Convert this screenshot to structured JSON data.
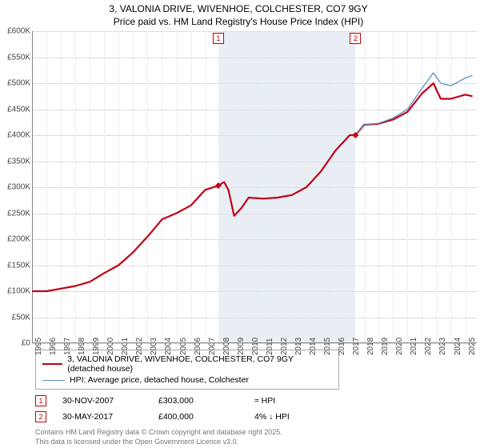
{
  "title1": "3, VALONIA DRIVE, WIVENHOE, COLCHESTER, CO7 9GY",
  "title2": "Price paid vs. HM Land Registry's House Price Index (HPI)",
  "chart": {
    "type": "line",
    "x_years": [
      1995,
      1996,
      1997,
      1998,
      1999,
      2000,
      2001,
      2002,
      2003,
      2004,
      2005,
      2006,
      2007,
      2008,
      2009,
      2010,
      2011,
      2012,
      2013,
      2014,
      2015,
      2016,
      2017,
      2018,
      2019,
      2020,
      2021,
      2022,
      2023,
      2024,
      2025
    ],
    "xlim": [
      1995,
      2025.8
    ],
    "ylim": [
      0,
      600000
    ],
    "ytick_step": 50000,
    "y_labels": [
      "£0",
      "£50K",
      "£100K",
      "£150K",
      "£200K",
      "£250K",
      "£300K",
      "£350K",
      "£400K",
      "£450K",
      "£500K",
      "£550K",
      "£600K"
    ],
    "grid_color": "#dddddd",
    "background_color": "#ffffff",
    "shaded_region": {
      "x_from": 2007.9,
      "x_to": 2017.4,
      "color": "#e8eef4"
    },
    "series": [
      {
        "name": "3, VALONIA DRIVE, WIVENHOE, COLCHESTER, CO7 9GY (detached house)",
        "color": "#c00018",
        "width": 2.2,
        "points": [
          [
            1995,
            100000
          ],
          [
            1996,
            100000
          ],
          [
            1997,
            105000
          ],
          [
            1998,
            110000
          ],
          [
            1999,
            118000
          ],
          [
            2000,
            135000
          ],
          [
            2001,
            150000
          ],
          [
            2002,
            175000
          ],
          [
            2003,
            205000
          ],
          [
            2004,
            238000
          ],
          [
            2005,
            250000
          ],
          [
            2006,
            265000
          ],
          [
            2007,
            295000
          ],
          [
            2007.9,
            303000
          ],
          [
            2008.3,
            310000
          ],
          [
            2008.6,
            295000
          ],
          [
            2009,
            245000
          ],
          [
            2009.5,
            260000
          ],
          [
            2010,
            280000
          ],
          [
            2011,
            278000
          ],
          [
            2012,
            280000
          ],
          [
            2013,
            285000
          ],
          [
            2014,
            300000
          ],
          [
            2015,
            330000
          ],
          [
            2016,
            370000
          ],
          [
            2017,
            400000
          ],
          [
            2017.4,
            400000
          ],
          [
            2018,
            420000
          ],
          [
            2019,
            422000
          ],
          [
            2020,
            430000
          ],
          [
            2021,
            445000
          ],
          [
            2022,
            480000
          ],
          [
            2022.8,
            500000
          ],
          [
            2023.3,
            470000
          ],
          [
            2024,
            470000
          ],
          [
            2025,
            478000
          ],
          [
            2025.5,
            475000
          ]
        ]
      },
      {
        "name": "HPI: Average price, detached house, Colchester",
        "color": "#5b8fc7",
        "width": 1.3,
        "points": [
          [
            2017.4,
            400000
          ],
          [
            2018,
            420000
          ],
          [
            2019,
            423000
          ],
          [
            2020,
            433000
          ],
          [
            2021,
            450000
          ],
          [
            2022,
            490000
          ],
          [
            2022.8,
            520000
          ],
          [
            2023.3,
            500000
          ],
          [
            2024,
            495000
          ],
          [
            2025,
            510000
          ],
          [
            2025.5,
            515000
          ]
        ]
      }
    ],
    "sale_markers": [
      {
        "num": "1",
        "x": 2007.9,
        "y": 303000,
        "color": "#c00018"
      },
      {
        "num": "2",
        "x": 2017.4,
        "y": 400000,
        "color": "#c00018"
      }
    ],
    "box_markers": [
      {
        "num": "1",
        "x": 2007.9
      },
      {
        "num": "2",
        "x": 2017.4
      }
    ]
  },
  "legend": [
    {
      "label": "3, VALONIA DRIVE, WIVENHOE, COLCHESTER, CO7 9GY (detached house)",
      "color": "#c00018",
      "width": 2.2
    },
    {
      "label": "HPI: Average price, detached house, Colchester",
      "color": "#5b8fc7",
      "width": 1.3
    }
  ],
  "data_rows": [
    {
      "num": "1",
      "date": "30-NOV-2007",
      "price": "£303,000",
      "hpi": "≈ HPI"
    },
    {
      "num": "2",
      "date": "30-MAY-2017",
      "price": "£400,000",
      "hpi": "4% ↓ HPI"
    }
  ],
  "footer1": "Contains HM Land Registry data © Crown copyright and database right 2025.",
  "footer2": "This data is licensed under the Open Government Licence v3.0."
}
